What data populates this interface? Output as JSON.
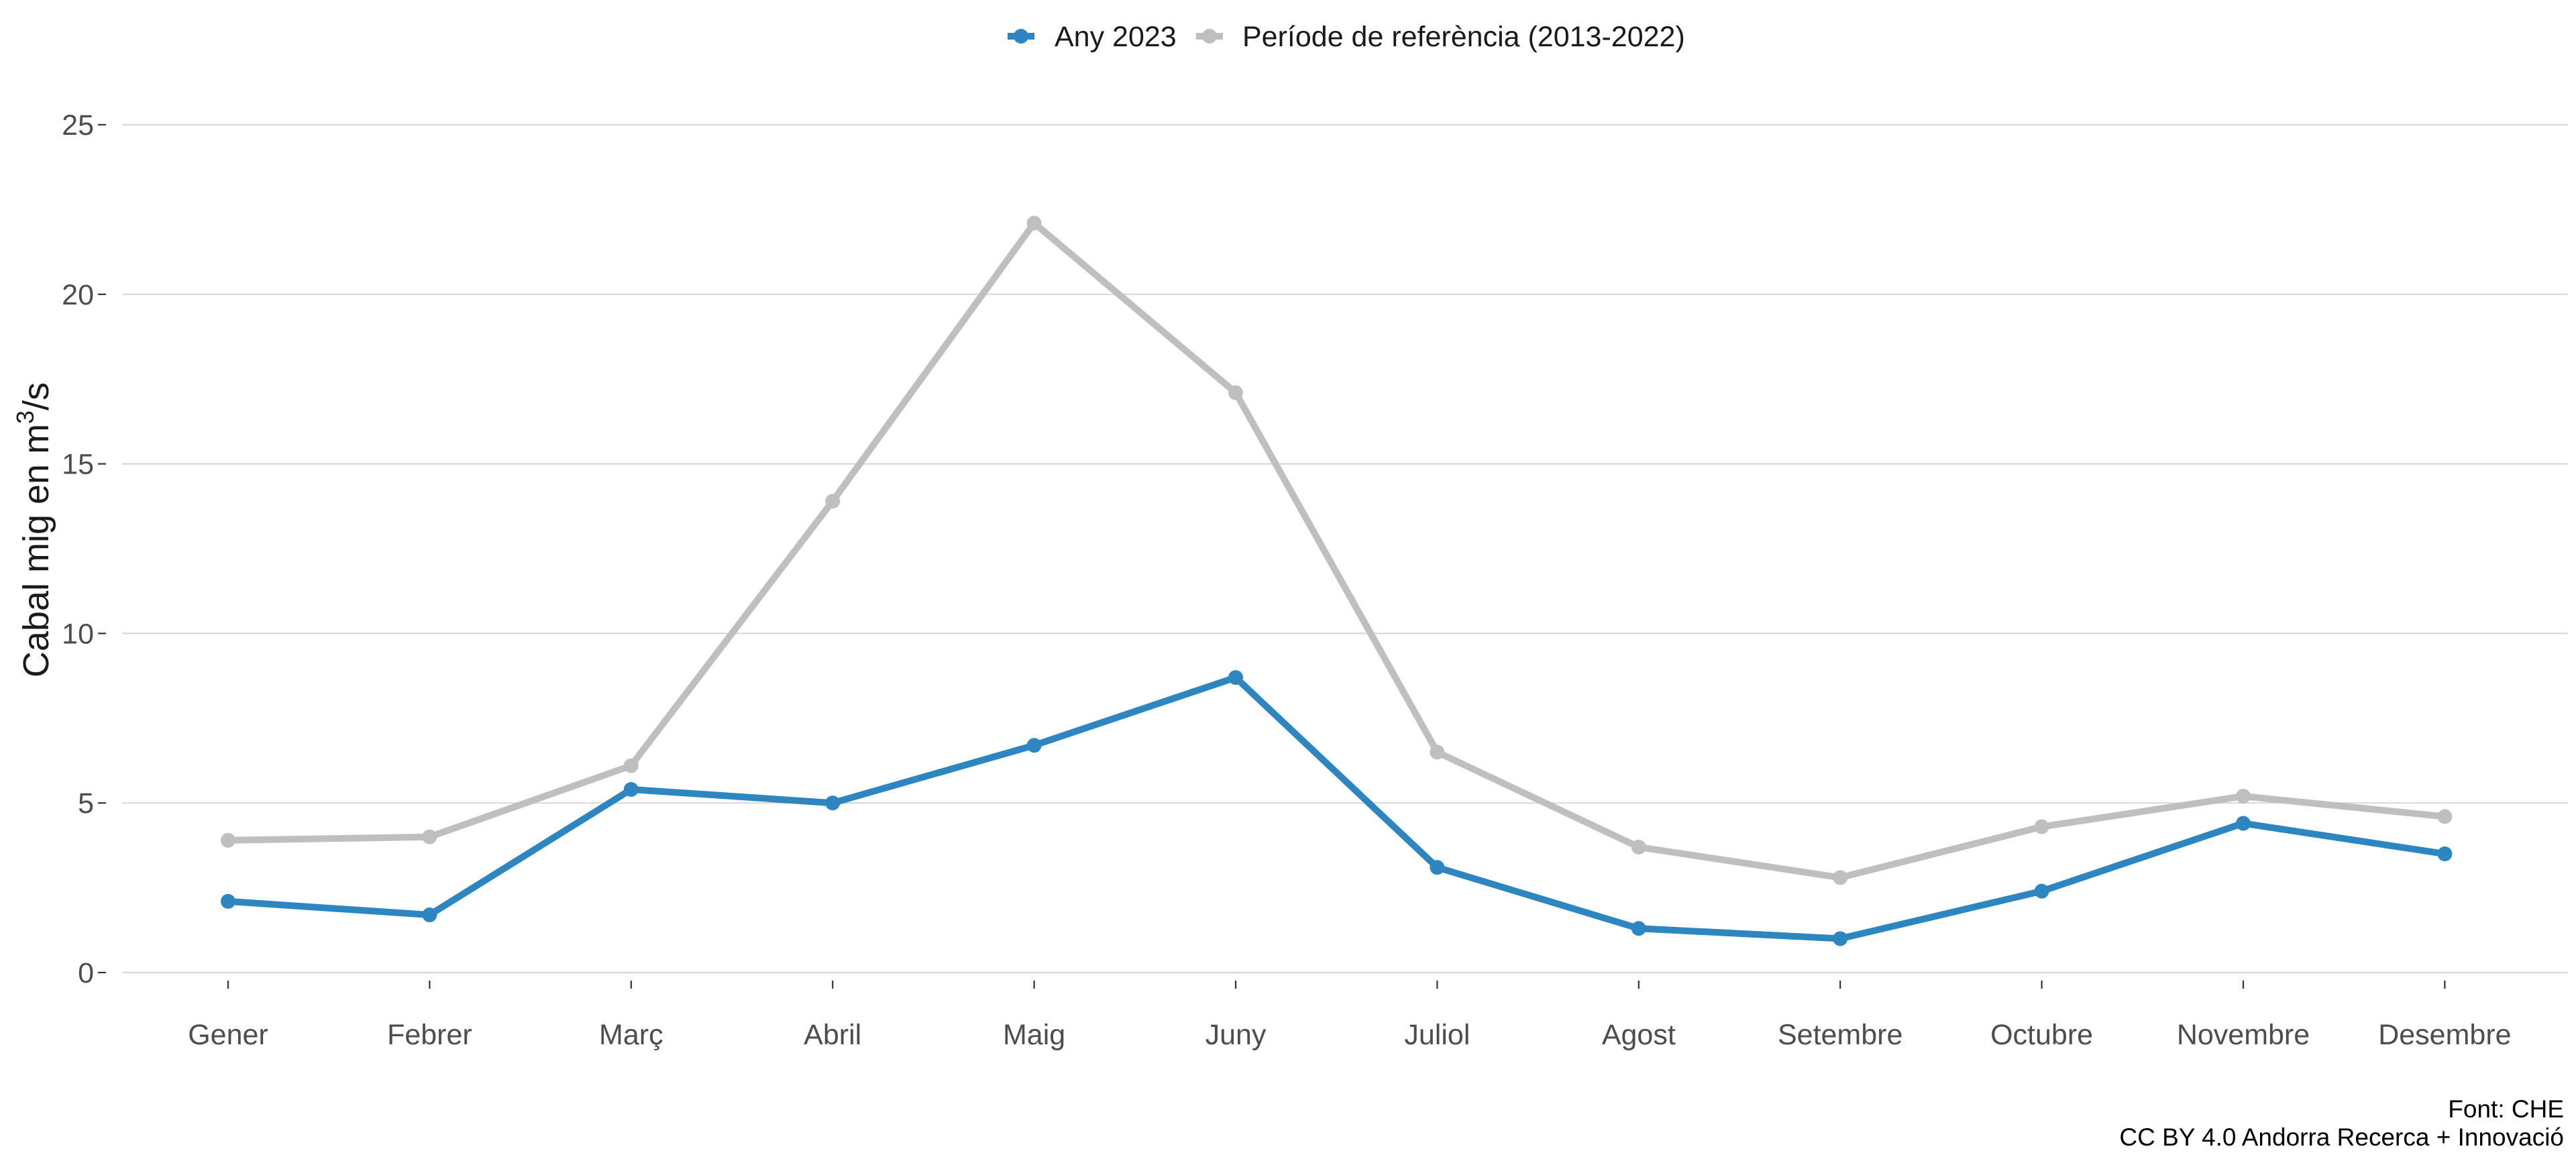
{
  "chart_data": {
    "type": "line",
    "title": "",
    "xlabel": "",
    "ylabel_prefix": "Cabal mig en m",
    "ylabel_superscript": "3",
    "ylabel_suffix": "/s",
    "categories": [
      "Gener",
      "Febrer",
      "Març",
      "Abril",
      "Maig",
      "Juny",
      "Juliol",
      "Agost",
      "Setembre",
      "Octubre",
      "Novembre",
      "Desembre"
    ],
    "ylim": [
      0,
      25
    ],
    "yticks": [
      0,
      5,
      10,
      15,
      20,
      25
    ],
    "grid": "horizontal",
    "legend_position": "top-center",
    "series": [
      {
        "name": "Any 2023",
        "color": "#2e86c1",
        "values": [
          2.1,
          1.7,
          5.4,
          5.0,
          6.7,
          8.7,
          3.1,
          1.3,
          1.0,
          2.4,
          4.4,
          3.5
        ]
      },
      {
        "name": "Període de referència (2013-2022)",
        "color": "#bfbfbf",
        "values": [
          3.9,
          4.0,
          6.1,
          13.9,
          22.1,
          17.1,
          6.5,
          3.7,
          2.8,
          4.3,
          5.2,
          4.6
        ]
      }
    ],
    "caption_lines": [
      "Font: CHE",
      "CC BY 4.0 Andorra Recerca + Innovació"
    ]
  }
}
